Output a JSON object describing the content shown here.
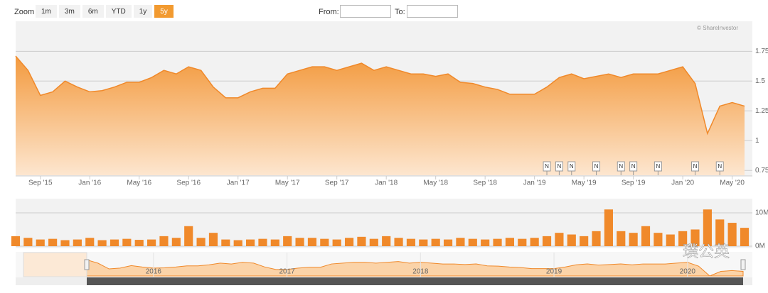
{
  "toolbar": {
    "zoom_label": "Zoom",
    "zoom_buttons": [
      "1m",
      "3m",
      "6m",
      "YTD",
      "1y",
      "5y"
    ],
    "selected": "5y",
    "from_label": "From:",
    "to_label": "To:"
  },
  "watermark": "璞公英",
  "chart_data": [
    {
      "type": "area",
      "credit": "© ShareInvestor",
      "color": "#f0892a",
      "grid": true,
      "x": [
        "2015-07",
        "2015-08",
        "2015-09",
        "2015-10",
        "2015-11",
        "2015-12",
        "2016-01",
        "2016-02",
        "2016-03",
        "2016-04",
        "2016-05",
        "2016-06",
        "2016-07",
        "2016-08",
        "2016-09",
        "2016-10",
        "2016-11",
        "2016-12",
        "2017-01",
        "2017-02",
        "2017-03",
        "2017-04",
        "2017-05",
        "2017-06",
        "2017-07",
        "2017-08",
        "2017-09",
        "2017-10",
        "2017-11",
        "2017-12",
        "2018-01",
        "2018-02",
        "2018-03",
        "2018-04",
        "2018-05",
        "2018-06",
        "2018-07",
        "2018-08",
        "2018-09",
        "2018-10",
        "2018-11",
        "2018-12",
        "2019-01",
        "2019-02",
        "2019-03",
        "2019-04",
        "2019-05",
        "2019-06",
        "2019-07",
        "2019-08",
        "2019-09",
        "2019-10",
        "2019-11",
        "2019-12",
        "2020-01",
        "2020-02",
        "2020-03",
        "2020-04",
        "2020-05",
        "2020-06"
      ],
      "values": [
        1.71,
        1.59,
        1.38,
        1.41,
        1.5,
        1.45,
        1.41,
        1.42,
        1.45,
        1.49,
        1.49,
        1.53,
        1.59,
        1.56,
        1.62,
        1.59,
        1.45,
        1.36,
        1.36,
        1.41,
        1.44,
        1.44,
        1.56,
        1.59,
        1.62,
        1.62,
        1.59,
        1.62,
        1.65,
        1.59,
        1.62,
        1.59,
        1.56,
        1.56,
        1.54,
        1.56,
        1.49,
        1.48,
        1.45,
        1.43,
        1.39,
        1.39,
        1.39,
        1.45,
        1.53,
        1.56,
        1.52,
        1.54,
        1.56,
        1.53,
        1.56,
        1.56,
        1.56,
        1.59,
        1.62,
        1.48,
        1.06,
        1.29,
        1.32,
        1.29
      ],
      "ylim": [
        0.71,
        1.99
      ],
      "yticks": [
        0.75,
        1,
        1.25,
        1.5,
        1.75
      ],
      "xticks": [
        {
          "value": "2015-09",
          "label": "Sep '15"
        },
        {
          "value": "2016-01",
          "label": "Jan '16"
        },
        {
          "value": "2016-05",
          "label": "May '16"
        },
        {
          "value": "2016-09",
          "label": "Sep '16"
        },
        {
          "value": "2017-01",
          "label": "Jan '17"
        },
        {
          "value": "2017-05",
          "label": "May '17"
        },
        {
          "value": "2017-09",
          "label": "Sep '17"
        },
        {
          "value": "2018-01",
          "label": "Jan '18"
        },
        {
          "value": "2018-05",
          "label": "May '18"
        },
        {
          "value": "2018-09",
          "label": "Sep '18"
        },
        {
          "value": "2019-01",
          "label": "Jan '19"
        },
        {
          "value": "2019-05",
          "label": "May '19"
        },
        {
          "value": "2019-09",
          "label": "Sep '19"
        },
        {
          "value": "2020-01",
          "label": "Jan '20"
        },
        {
          "value": "2020-05",
          "label": "May '20"
        }
      ],
      "flags": [
        {
          "x": "2019-02",
          "label": "N"
        },
        {
          "x": "2019-03",
          "label": "N"
        },
        {
          "x": "2019-04",
          "label": "N"
        },
        {
          "x": "2019-06",
          "label": "N"
        },
        {
          "x": "2019-08",
          "label": "N"
        },
        {
          "x": "2019-09",
          "label": "N"
        },
        {
          "x": "2019-11",
          "label": "N"
        },
        {
          "x": "2020-02",
          "label": "N"
        },
        {
          "x": "2020-04",
          "label": "N"
        }
      ],
      "navigator_xticks": [
        {
          "value": "2016-01",
          "label": "2016"
        },
        {
          "value": "2017-01",
          "label": "2017"
        },
        {
          "value": "2018-01",
          "label": "2018"
        },
        {
          "value": "2019-01",
          "label": "2019"
        },
        {
          "value": "2020-01",
          "label": "2020"
        }
      ]
    },
    {
      "type": "bar",
      "color": "#f0892a",
      "values": [
        3000000,
        2500000,
        2000000,
        2200000,
        1800000,
        2000000,
        2500000,
        1800000,
        2000000,
        2200000,
        1900000,
        2000000,
        3000000,
        2500000,
        6000000,
        2500000,
        4000000,
        2000000,
        1800000,
        2000000,
        2200000,
        2000000,
        3000000,
        2500000,
        2500000,
        2200000,
        2000000,
        2500000,
        2800000,
        2200000,
        3000000,
        2500000,
        2200000,
        2000000,
        2200000,
        2000000,
        2500000,
        2200000,
        2000000,
        2200000,
        2500000,
        2200000,
        2500000,
        3000000,
        4000000,
        3500000,
        3000000,
        4500000,
        11000000,
        4500000,
        4000000,
        6000000,
        4000000,
        3500000,
        4500000,
        5000000,
        11000000,
        8000000,
        7000000,
        5500000
      ],
      "ylim": [
        0,
        13600000
      ],
      "yticks": [
        {
          "value": 0,
          "label": "0M"
        },
        {
          "value": 10000000,
          "label": "10M"
        }
      ]
    }
  ]
}
